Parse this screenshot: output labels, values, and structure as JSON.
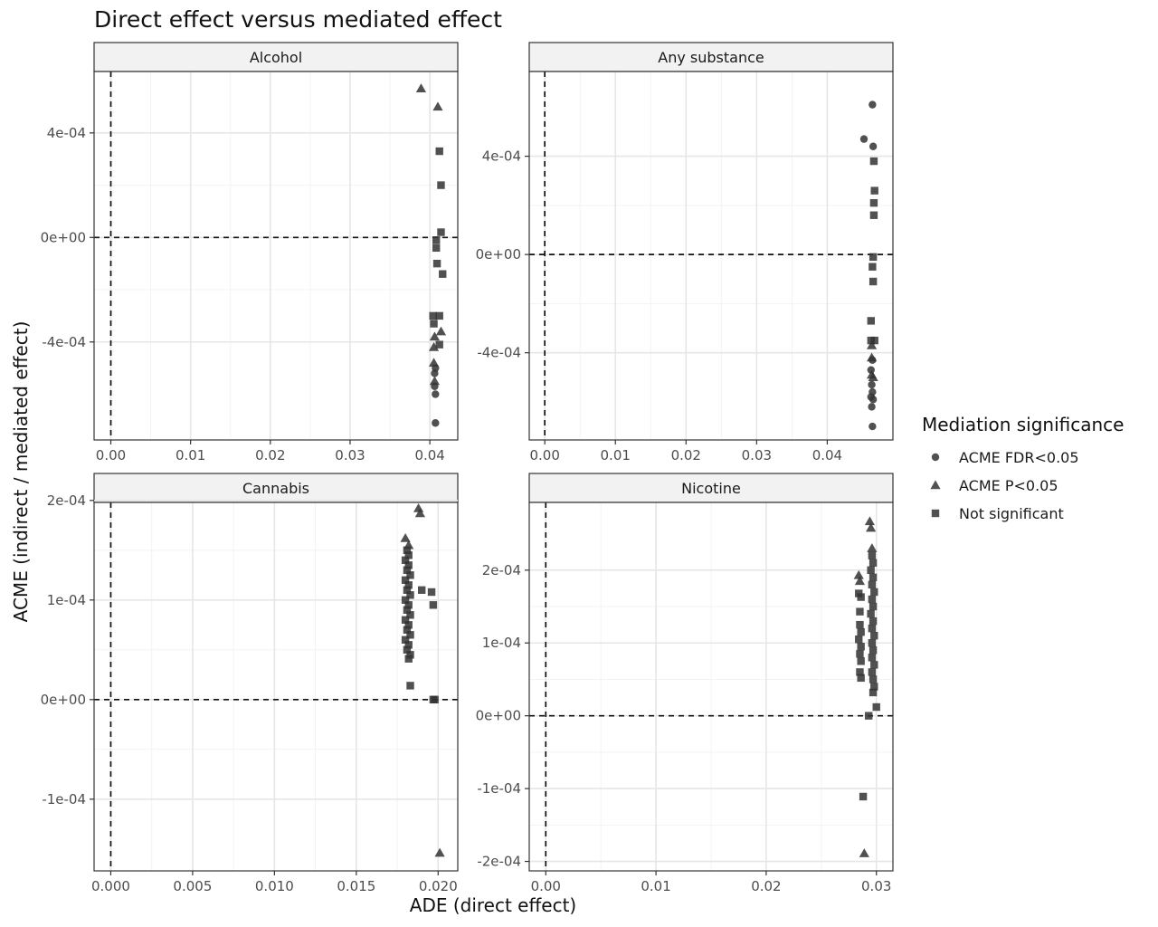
{
  "chart_data": {
    "type": "scatter",
    "title": "Direct effect versus mediated effect",
    "xlabel": "ADE (direct effect)",
    "ylabel": "ACME (indirect / mediated effect)",
    "grid": true,
    "legend": {
      "title": "Mediation significance",
      "position": "right",
      "entries": [
        {
          "label": "ACME FDR<0.05",
          "shape": "circle"
        },
        {
          "label": "ACME P<0.05",
          "shape": "triangle"
        },
        {
          "label": "Not significant",
          "shape": "square"
        }
      ]
    },
    "reference_lines": {
      "x": 0,
      "y": 0,
      "style": "dashed"
    },
    "marker_color": "#333333",
    "panels": [
      {
        "name": "Alcohol",
        "xlim": [
          -0.0021,
          0.0435
        ],
        "ylim": [
          -0.000775,
          0.000635
        ],
        "x_ticks": [
          {
            "value": 0,
            "label": "0.00"
          },
          {
            "value": 0.01,
            "label": "0.01"
          },
          {
            "value": 0.02,
            "label": "0.02"
          },
          {
            "value": 0.03,
            "label": "0.03"
          },
          {
            "value": 0.04,
            "label": "0.04"
          }
        ],
        "y_ticks": [
          {
            "value": -0.0004,
            "label": "-4e-04"
          },
          {
            "value": 0,
            "label": "0e+00"
          },
          {
            "value": 0.0004,
            "label": "4e-04"
          }
        ],
        "points": [
          {
            "x": 0.0389,
            "y": 0.00057,
            "sig": "ACME P<0.05"
          },
          {
            "x": 0.041,
            "y": 0.0005,
            "sig": "ACME P<0.05"
          },
          {
            "x": 0.0412,
            "y": 0.00033,
            "sig": "Not significant"
          },
          {
            "x": 0.0414,
            "y": 0.0002,
            "sig": "Not significant"
          },
          {
            "x": 0.0414,
            "y": 2e-05,
            "sig": "Not significant"
          },
          {
            "x": 0.0408,
            "y": -1e-05,
            "sig": "Not significant"
          },
          {
            "x": 0.0408,
            "y": -4e-05,
            "sig": "Not significant"
          },
          {
            "x": 0.0409,
            "y": -0.0001,
            "sig": "Not significant"
          },
          {
            "x": 0.0416,
            "y": -0.00014,
            "sig": "Not significant"
          },
          {
            "x": 0.0404,
            "y": -0.0003,
            "sig": "Not significant"
          },
          {
            "x": 0.0412,
            "y": -0.0003,
            "sig": "Not significant"
          },
          {
            "x": 0.0405,
            "y": -0.00033,
            "sig": "Not significant"
          },
          {
            "x": 0.0414,
            "y": -0.00036,
            "sig": "ACME P<0.05"
          },
          {
            "x": 0.0406,
            "y": -0.00038,
            "sig": "ACME P<0.05"
          },
          {
            "x": 0.0412,
            "y": -0.00041,
            "sig": "Not significant"
          },
          {
            "x": 0.0405,
            "y": -0.00042,
            "sig": "ACME P<0.05"
          },
          {
            "x": 0.0405,
            "y": -0.00048,
            "sig": "ACME P<0.05"
          },
          {
            "x": 0.0407,
            "y": -0.0005,
            "sig": "ACME FDR<0.05"
          },
          {
            "x": 0.0406,
            "y": -0.00052,
            "sig": "ACME FDR<0.05"
          },
          {
            "x": 0.0406,
            "y": -0.00055,
            "sig": "ACME P<0.05"
          },
          {
            "x": 0.0406,
            "y": -0.00057,
            "sig": "ACME FDR<0.05"
          },
          {
            "x": 0.0407,
            "y": -0.0006,
            "sig": "ACME FDR<0.05"
          },
          {
            "x": 0.0407,
            "y": -0.00071,
            "sig": "ACME FDR<0.05"
          }
        ]
      },
      {
        "name": "Any substance",
        "xlim": [
          -0.0022,
          0.0493
        ],
        "ylim": [
          -0.000755,
          0.000745
        ],
        "x_ticks": [
          {
            "value": 0,
            "label": "0.00"
          },
          {
            "value": 0.01,
            "label": "0.01"
          },
          {
            "value": 0.02,
            "label": "0.02"
          },
          {
            "value": 0.03,
            "label": "0.03"
          },
          {
            "value": 0.04,
            "label": "0.04"
          }
        ],
        "y_ticks": [
          {
            "value": -0.0004,
            "label": "-4e-04"
          },
          {
            "value": 0,
            "label": "0e+00"
          },
          {
            "value": 0.0004,
            "label": "4e-04"
          }
        ],
        "points": [
          {
            "x": 0.0464,
            "y": 0.00061,
            "sig": "ACME FDR<0.05"
          },
          {
            "x": 0.0452,
            "y": 0.00047,
            "sig": "ACME FDR<0.05"
          },
          {
            "x": 0.0465,
            "y": 0.00044,
            "sig": "ACME FDR<0.05"
          },
          {
            "x": 0.0466,
            "y": 0.00038,
            "sig": "Not significant"
          },
          {
            "x": 0.0467,
            "y": 0.00026,
            "sig": "Not significant"
          },
          {
            "x": 0.0466,
            "y": 0.00021,
            "sig": "Not significant"
          },
          {
            "x": 0.0466,
            "y": 0.00016,
            "sig": "Not significant"
          },
          {
            "x": 0.0465,
            "y": -1e-05,
            "sig": "Not significant"
          },
          {
            "x": 0.0464,
            "y": -5e-05,
            "sig": "Not significant"
          },
          {
            "x": 0.0465,
            "y": -0.00011,
            "sig": "Not significant"
          },
          {
            "x": 0.0462,
            "y": -0.00027,
            "sig": "Not significant"
          },
          {
            "x": 0.0462,
            "y": -0.00035,
            "sig": "Not significant"
          },
          {
            "x": 0.0467,
            "y": -0.00035,
            "sig": "Not significant"
          },
          {
            "x": 0.0463,
            "y": -0.00037,
            "sig": "ACME P<0.05"
          },
          {
            "x": 0.0463,
            "y": -0.00042,
            "sig": "ACME P<0.05"
          },
          {
            "x": 0.0464,
            "y": -0.00043,
            "sig": "ACME FDR<0.05"
          },
          {
            "x": 0.0462,
            "y": -0.00047,
            "sig": "ACME FDR<0.05"
          },
          {
            "x": 0.0463,
            "y": -0.00049,
            "sig": "ACME P<0.05"
          },
          {
            "x": 0.0465,
            "y": -0.0005,
            "sig": "ACME P<0.05"
          },
          {
            "x": 0.0463,
            "y": -0.00053,
            "sig": "ACME FDR<0.05"
          },
          {
            "x": 0.0464,
            "y": -0.00056,
            "sig": "ACME FDR<0.05"
          },
          {
            "x": 0.0462,
            "y": -0.00058,
            "sig": "ACME FDR<0.05"
          },
          {
            "x": 0.0465,
            "y": -0.00059,
            "sig": "ACME FDR<0.05"
          },
          {
            "x": 0.0463,
            "y": -0.00062,
            "sig": "ACME FDR<0.05"
          },
          {
            "x": 0.0464,
            "y": -0.0007,
            "sig": "ACME FDR<0.05"
          }
        ]
      },
      {
        "name": "Cannabis",
        "xlim": [
          -0.00102,
          0.0212
        ],
        "ylim": [
          -0.000172,
          0.000198
        ],
        "x_ticks": [
          {
            "value": 0,
            "label": "0.000"
          },
          {
            "value": 0.005,
            "label": "0.005"
          },
          {
            "value": 0.01,
            "label": "0.010"
          },
          {
            "value": 0.015,
            "label": "0.015"
          },
          {
            "value": 0.02,
            "label": "0.020"
          }
        ],
        "y_ticks": [
          {
            "value": -0.0001,
            "label": "-1e-04"
          },
          {
            "value": 0,
            "label": "0e+00"
          },
          {
            "value": 0.0001,
            "label": "1e-04"
          },
          {
            "value": 0.0002,
            "label": "2e-04"
          }
        ],
        "points": [
          {
            "x": 0.0188,
            "y": 0.000192,
            "sig": "ACME P<0.05"
          },
          {
            "x": 0.0189,
            "y": 0.000187,
            "sig": "ACME P<0.05"
          },
          {
            "x": 0.018,
            "y": 0.000162,
            "sig": "ACME P<0.05"
          },
          {
            "x": 0.0182,
            "y": 0.000155,
            "sig": "ACME P<0.05"
          },
          {
            "x": 0.0181,
            "y": 0.00015,
            "sig": "Not significant"
          },
          {
            "x": 0.0182,
            "y": 0.000145,
            "sig": "Not significant"
          },
          {
            "x": 0.018,
            "y": 0.00014,
            "sig": "Not significant"
          },
          {
            "x": 0.0182,
            "y": 0.000135,
            "sig": "Not significant"
          },
          {
            "x": 0.0181,
            "y": 0.00013,
            "sig": "Not significant"
          },
          {
            "x": 0.0183,
            "y": 0.000125,
            "sig": "Not significant"
          },
          {
            "x": 0.018,
            "y": 0.00012,
            "sig": "Not significant"
          },
          {
            "x": 0.0182,
            "y": 0.000115,
            "sig": "Not significant"
          },
          {
            "x": 0.0181,
            "y": 0.00011,
            "sig": "Not significant"
          },
          {
            "x": 0.0183,
            "y": 0.000105,
            "sig": "Not significant"
          },
          {
            "x": 0.018,
            "y": 0.0001,
            "sig": "Not significant"
          },
          {
            "x": 0.0182,
            "y": 9.5e-05,
            "sig": "Not significant"
          },
          {
            "x": 0.0181,
            "y": 9e-05,
            "sig": "Not significant"
          },
          {
            "x": 0.0183,
            "y": 8.5e-05,
            "sig": "Not significant"
          },
          {
            "x": 0.018,
            "y": 8e-05,
            "sig": "Not significant"
          },
          {
            "x": 0.0182,
            "y": 7.5e-05,
            "sig": "Not significant"
          },
          {
            "x": 0.0181,
            "y": 7e-05,
            "sig": "Not significant"
          },
          {
            "x": 0.0183,
            "y": 6.5e-05,
            "sig": "Not significant"
          },
          {
            "x": 0.018,
            "y": 6e-05,
            "sig": "Not significant"
          },
          {
            "x": 0.0182,
            "y": 5.5e-05,
            "sig": "Not significant"
          },
          {
            "x": 0.0181,
            "y": 5e-05,
            "sig": "Not significant"
          },
          {
            "x": 0.0183,
            "y": 4.5e-05,
            "sig": "Not significant"
          },
          {
            "x": 0.0182,
            "y": 4.1e-05,
            "sig": "Not significant"
          },
          {
            "x": 0.019,
            "y": 0.00011,
            "sig": "Not significant"
          },
          {
            "x": 0.0196,
            "y": 0.000108,
            "sig": "Not significant"
          },
          {
            "x": 0.0197,
            "y": 9.5e-05,
            "sig": "Not significant"
          },
          {
            "x": 0.0183,
            "y": 1.4e-05,
            "sig": "Not significant"
          },
          {
            "x": 0.0197,
            "y": 0.0,
            "sig": "Not significant"
          },
          {
            "x": 0.0198,
            "y": 0.0,
            "sig": "Not significant"
          },
          {
            "x": 0.0201,
            "y": -0.000154,
            "sig": "ACME P<0.05"
          }
        ]
      },
      {
        "name": "Nicotine",
        "xlim": [
          -0.0015,
          0.0315
        ],
        "ylim": [
          -0.000213,
          0.000293
        ],
        "x_ticks": [
          {
            "value": 0,
            "label": "0.00"
          },
          {
            "value": 0.01,
            "label": "0.01"
          },
          {
            "value": 0.02,
            "label": "0.02"
          },
          {
            "value": 0.03,
            "label": "0.03"
          }
        ],
        "y_ticks": [
          {
            "value": -0.0002,
            "label": "-2e-04"
          },
          {
            "value": -0.0001,
            "label": "-1e-04"
          },
          {
            "value": 0,
            "label": "0e+00"
          },
          {
            "value": 0.0001,
            "label": "1e-04"
          },
          {
            "value": 0.0002,
            "label": "2e-04"
          }
        ],
        "points": [
          {
            "x": 0.0294,
            "y": 0.000267,
            "sig": "ACME P<0.05"
          },
          {
            "x": 0.0295,
            "y": 0.000258,
            "sig": "ACME P<0.05"
          },
          {
            "x": 0.0296,
            "y": 0.00023,
            "sig": "ACME P<0.05"
          },
          {
            "x": 0.0296,
            "y": 0.00022,
            "sig": "Not significant"
          },
          {
            "x": 0.0297,
            "y": 0.00021,
            "sig": "Not significant"
          },
          {
            "x": 0.0295,
            "y": 0.0002,
            "sig": "Not significant"
          },
          {
            "x": 0.0297,
            "y": 0.00019,
            "sig": "Not significant"
          },
          {
            "x": 0.0296,
            "y": 0.00018,
            "sig": "Not significant"
          },
          {
            "x": 0.0298,
            "y": 0.00017,
            "sig": "Not significant"
          },
          {
            "x": 0.0296,
            "y": 0.00016,
            "sig": "Not significant"
          },
          {
            "x": 0.0297,
            "y": 0.00015,
            "sig": "Not significant"
          },
          {
            "x": 0.0295,
            "y": 0.00014,
            "sig": "Not significant"
          },
          {
            "x": 0.0297,
            "y": 0.00013,
            "sig": "Not significant"
          },
          {
            "x": 0.0296,
            "y": 0.00012,
            "sig": "Not significant"
          },
          {
            "x": 0.0298,
            "y": 0.00011,
            "sig": "Not significant"
          },
          {
            "x": 0.0296,
            "y": 0.0001,
            "sig": "Not significant"
          },
          {
            "x": 0.0297,
            "y": 9e-05,
            "sig": "Not significant"
          },
          {
            "x": 0.0296,
            "y": 8e-05,
            "sig": "Not significant"
          },
          {
            "x": 0.0298,
            "y": 7e-05,
            "sig": "Not significant"
          },
          {
            "x": 0.0296,
            "y": 6e-05,
            "sig": "Not significant"
          },
          {
            "x": 0.0297,
            "y": 5e-05,
            "sig": "Not significant"
          },
          {
            "x": 0.0298,
            "y": 4e-05,
            "sig": "Not significant"
          },
          {
            "x": 0.0297,
            "y": 3.2e-05,
            "sig": "Not significant"
          },
          {
            "x": 0.0284,
            "y": 0.000193,
            "sig": "ACME P<0.05"
          },
          {
            "x": 0.0285,
            "y": 0.000185,
            "sig": "ACME P<0.05"
          },
          {
            "x": 0.0284,
            "y": 0.000168,
            "sig": "Not significant"
          },
          {
            "x": 0.0286,
            "y": 0.000163,
            "sig": "Not significant"
          },
          {
            "x": 0.0285,
            "y": 0.000143,
            "sig": "Not significant"
          },
          {
            "x": 0.0285,
            "y": 0.000125,
            "sig": "Not significant"
          },
          {
            "x": 0.0286,
            "y": 0.000115,
            "sig": "Not significant"
          },
          {
            "x": 0.0284,
            "y": 0.000105,
            "sig": "Not significant"
          },
          {
            "x": 0.0286,
            "y": 9.5e-05,
            "sig": "Not significant"
          },
          {
            "x": 0.0285,
            "y": 8.5e-05,
            "sig": "Not significant"
          },
          {
            "x": 0.0286,
            "y": 7.5e-05,
            "sig": "Not significant"
          },
          {
            "x": 0.0285,
            "y": 6e-05,
            "sig": "Not significant"
          },
          {
            "x": 0.0286,
            "y": 5.2e-05,
            "sig": "Not significant"
          },
          {
            "x": 0.03,
            "y": 1.2e-05,
            "sig": "Not significant"
          },
          {
            "x": 0.0293,
            "y": 0.0,
            "sig": "Not significant"
          },
          {
            "x": 0.0288,
            "y": -0.000111,
            "sig": "Not significant"
          },
          {
            "x": 0.0289,
            "y": -0.000189,
            "sig": "ACME P<0.05"
          }
        ]
      }
    ]
  }
}
